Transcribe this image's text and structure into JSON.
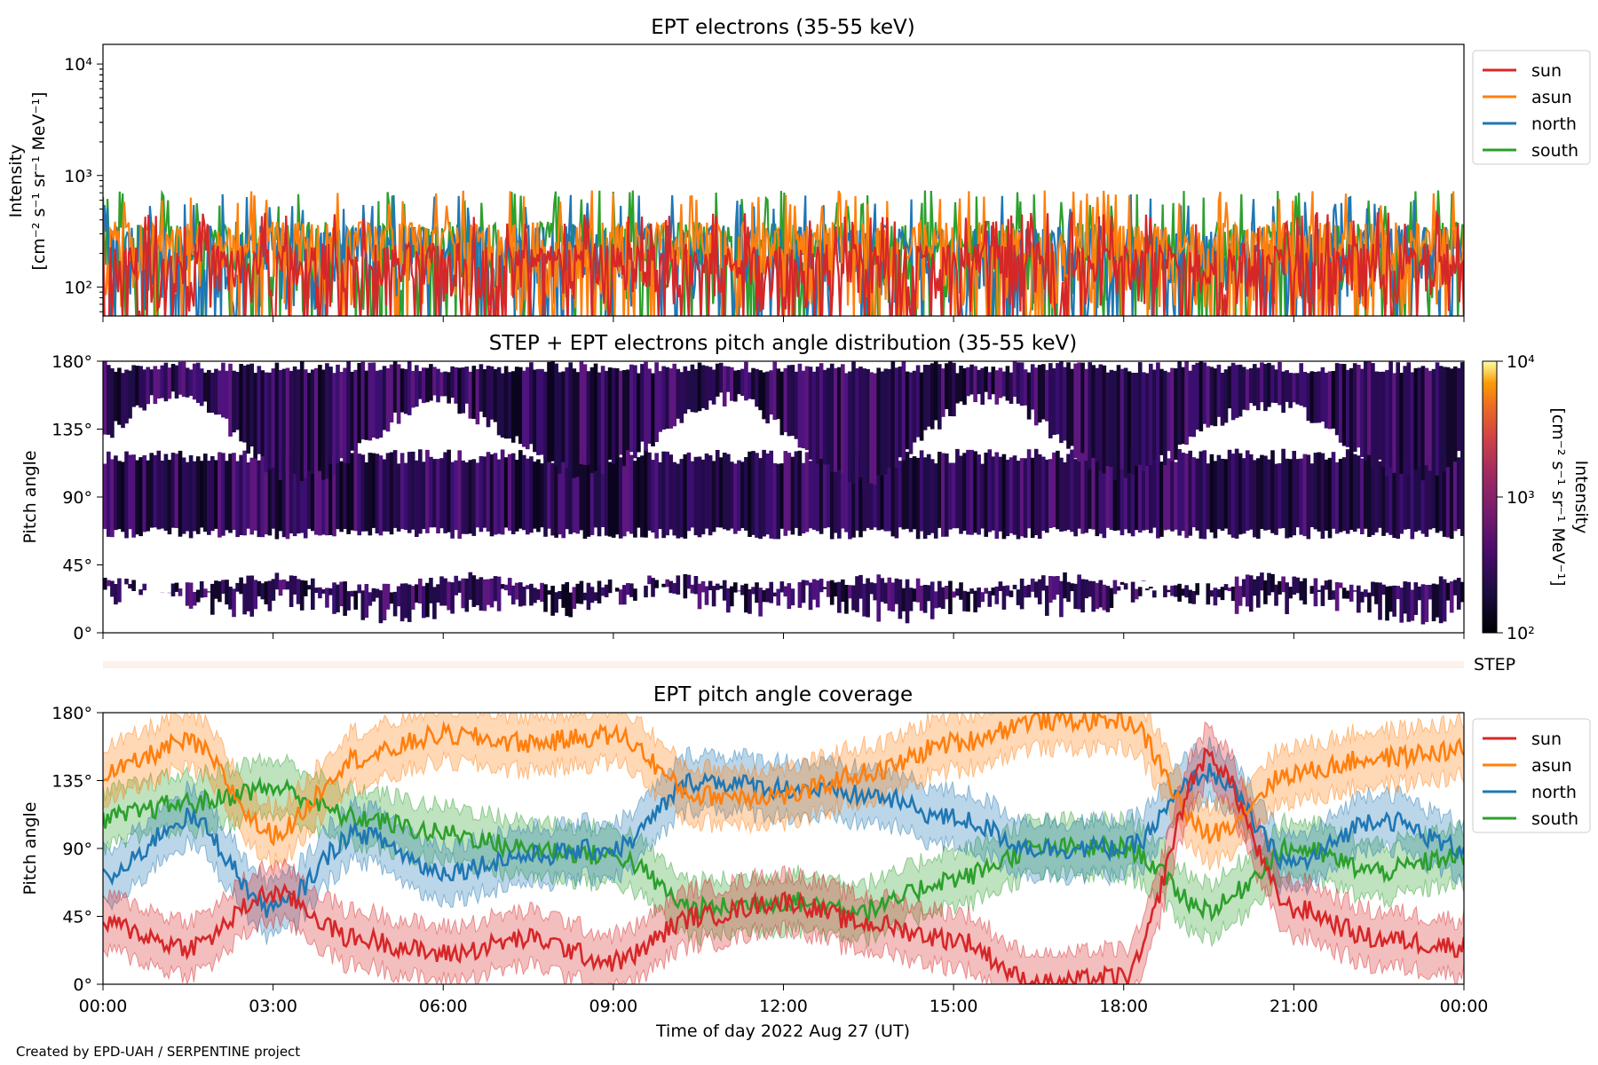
{
  "footer": "Created by EPD-UAH / SERPENTINE project",
  "colors": {
    "sun": "#d62728",
    "asun": "#ff7f0e",
    "north": "#1f77b4",
    "south": "#2ca02c"
  },
  "chart_data": [
    {
      "type": "line",
      "title": "EPT electrons (35-55 keV)",
      "ylabel_line1": "Intensity",
      "ylabel_line2": "[cm⁻² s⁻¹ sr⁻¹ MeV⁻¹]",
      "yscale": "log",
      "ylim": [
        55,
        15000
      ],
      "yticks": [
        {
          "value": 100,
          "label": "10²"
        },
        {
          "value": 1000,
          "label": "10³"
        },
        {
          "value": 10000,
          "label": "10⁴"
        }
      ],
      "xlim_hours": [
        0,
        24
      ],
      "legend": [
        "sun",
        "asun",
        "north",
        "south"
      ],
      "legend_placement": "outside-right",
      "series": [
        {
          "name": "sun",
          "typical_range": [
            60,
            450
          ]
        },
        {
          "name": "asun",
          "typical_range": [
            60,
            700
          ]
        },
        {
          "name": "north",
          "typical_range": [
            60,
            650
          ]
        },
        {
          "name": "south",
          "typical_range": [
            60,
            700
          ]
        }
      ]
    },
    {
      "type": "heatmap",
      "title": "STEP + EPT electrons pitch angle distribution (35-55 keV)",
      "ylabel": "Pitch angle",
      "ylim": [
        0,
        180
      ],
      "yticks": [
        "0°",
        "45°",
        "90°",
        "135°",
        "180°"
      ],
      "colorbar": {
        "cmap": "inferno",
        "scale": "log",
        "range": [
          100,
          10000
        ],
        "ticks": [
          {
            "value": 100,
            "label": "10²"
          },
          {
            "value": 1000,
            "label": "10³"
          },
          {
            "value": 10000,
            "label": "10⁴"
          }
        ],
        "label_line1": "Intensity",
        "label_line2": "[cm⁻² s⁻¹ sr⁻¹ MeV⁻¹]"
      }
    },
    {
      "type": "heatmap",
      "label": "STEP",
      "note": "empty strip"
    },
    {
      "type": "line",
      "title": "EPT pitch angle coverage",
      "ylabel": "Pitch angle",
      "ylim": [
        0,
        180
      ],
      "yticks": [
        "0°",
        "45°",
        "90°",
        "135°",
        "180°"
      ],
      "xlabel": "Time of day 2022 Aug 27 (UT)",
      "xticks": [
        "00:00",
        "03:00",
        "06:00",
        "09:00",
        "12:00",
        "15:00",
        "18:00",
        "21:00",
        "00:00"
      ],
      "legend": [
        "sun",
        "asun",
        "north",
        "south"
      ],
      "legend_placement": "outside-right",
      "segments_hours": [
        0,
        1.7,
        2.1,
        2.8,
        5.2,
        6.9,
        9.0,
        11.6,
        15.0,
        16.0,
        20.3,
        21.0,
        21.6,
        23.2,
        24.0
      ],
      "series": [
        {
          "name": "sun",
          "values": [
            40,
            25,
            60,
            30,
            20,
            30,
            15,
            45,
            55,
            40,
            30,
            0,
            5,
            150,
            50,
            30,
            25
          ],
          "band": 18
        },
        {
          "name": "asun",
          "values": [
            140,
            160,
            100,
            150,
            165,
            160,
            165,
            125,
            125,
            140,
            160,
            175,
            175,
            100,
            140,
            150,
            155
          ],
          "band": 18
        },
        {
          "name": "north",
          "values": [
            70,
            110,
            50,
            100,
            75,
            85,
            90,
            135,
            130,
            125,
            110,
            90,
            90,
            140,
            80,
            110,
            90
          ],
          "band": 18
        },
        {
          "name": "south",
          "values": [
            110,
            120,
            130,
            110,
            100,
            90,
            85,
            50,
            55,
            50,
            70,
            90,
            90,
            50,
            90,
            75,
            85
          ],
          "band": 18
        }
      ]
    }
  ]
}
